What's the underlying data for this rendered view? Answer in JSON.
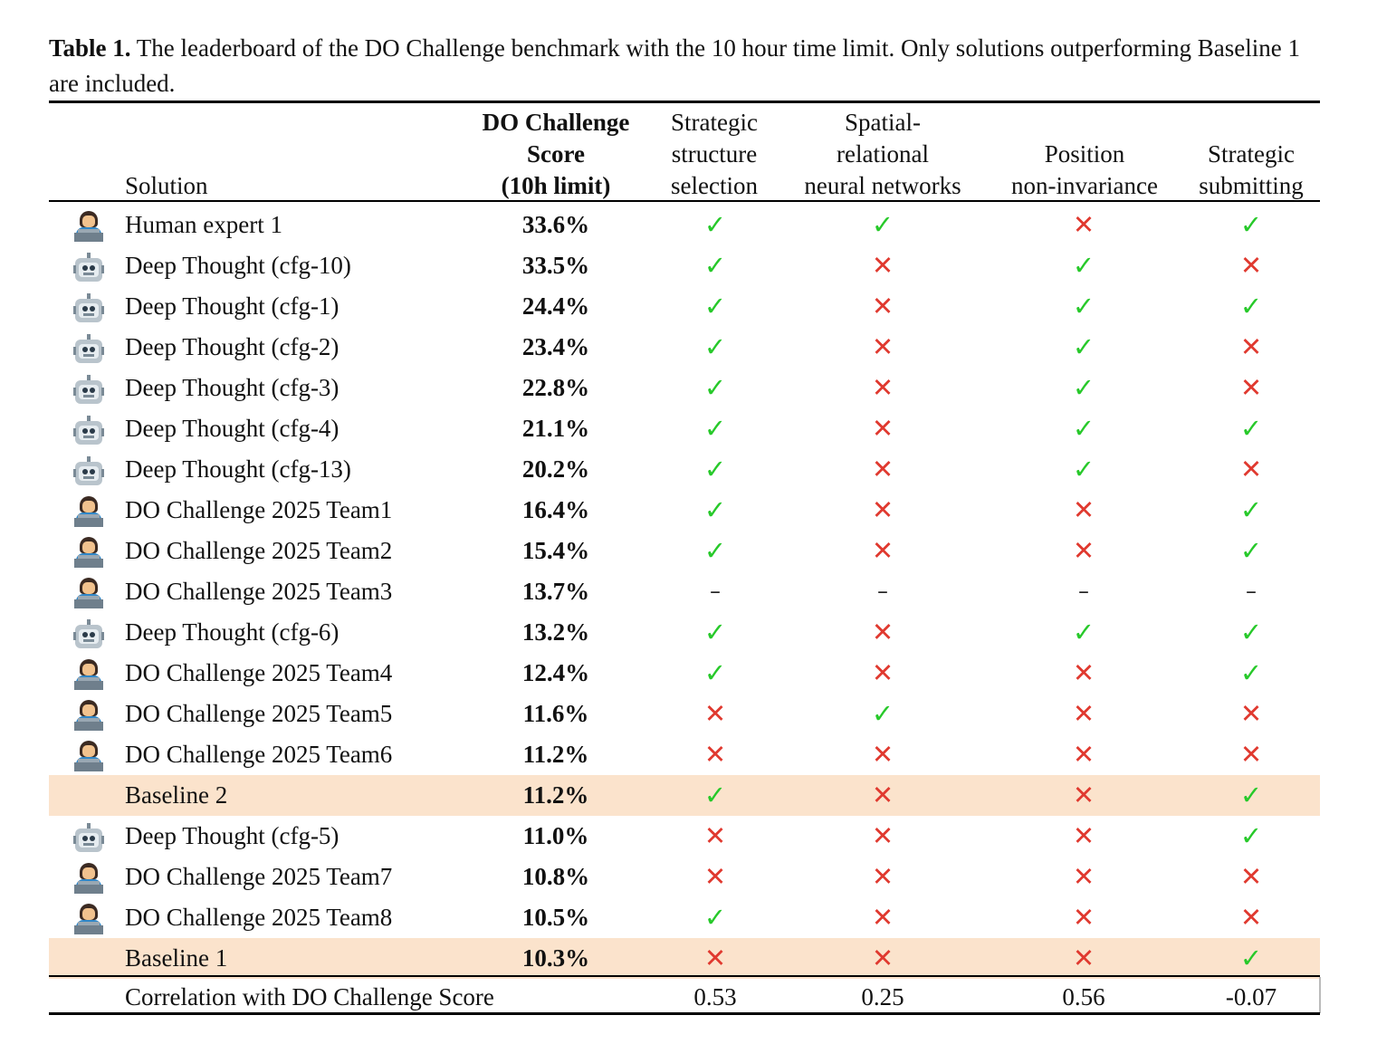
{
  "caption": {
    "label": "Table 1.",
    "text": " The leaderboard of the DO Challenge benchmark with the 10 hour time limit. Only solutions outperforming Baseline 1 are included."
  },
  "headers": {
    "solution": "Solution",
    "score": [
      "DO Challenge",
      "Score",
      "(10h limit)"
    ],
    "strategic_structure": [
      "Strategic",
      "structure",
      "selection"
    ],
    "spatial": [
      "Spatial-",
      "relational",
      "neural networks"
    ],
    "position": [
      "Position",
      "non-invariance"
    ],
    "strategic_submitting": [
      "Strategic",
      "submitting"
    ]
  },
  "rows": [
    {
      "icon": "human-icon",
      "name": "Human expert 1",
      "score": "33.6%",
      "marks": [
        "yes",
        "yes",
        "no",
        "yes"
      ]
    },
    {
      "icon": "robot-icon",
      "name": "Deep Thought (cfg-10)",
      "score": "33.5%",
      "marks": [
        "yes",
        "no",
        "yes",
        "no"
      ]
    },
    {
      "icon": "robot-icon",
      "name": "Deep Thought (cfg-1)",
      "score": "24.4%",
      "marks": [
        "yes",
        "no",
        "yes",
        "yes"
      ]
    },
    {
      "icon": "robot-icon",
      "name": "Deep Thought (cfg-2)",
      "score": "23.4%",
      "marks": [
        "yes",
        "no",
        "yes",
        "no"
      ]
    },
    {
      "icon": "robot-icon",
      "name": "Deep Thought (cfg-3)",
      "score": "22.8%",
      "marks": [
        "yes",
        "no",
        "yes",
        "no"
      ]
    },
    {
      "icon": "robot-icon",
      "name": "Deep Thought (cfg-4)",
      "score": "21.1%",
      "marks": [
        "yes",
        "no",
        "yes",
        "yes"
      ]
    },
    {
      "icon": "robot-icon",
      "name": "Deep Thought (cfg-13)",
      "score": "20.2%",
      "marks": [
        "yes",
        "no",
        "yes",
        "no"
      ]
    },
    {
      "icon": "human-icon",
      "name": "DO Challenge 2025 Team1",
      "score": "16.4%",
      "marks": [
        "yes",
        "no",
        "no",
        "yes"
      ]
    },
    {
      "icon": "human-icon",
      "name": "DO Challenge 2025 Team2",
      "score": "15.4%",
      "marks": [
        "yes",
        "no",
        "no",
        "yes"
      ]
    },
    {
      "icon": "human-icon",
      "name": "DO Challenge 2025 Team3",
      "score": "13.7%",
      "marks": [
        "dash",
        "dash",
        "dash",
        "dash"
      ]
    },
    {
      "icon": "robot-icon",
      "name": "Deep Thought (cfg-6)",
      "score": "13.2%",
      "marks": [
        "yes",
        "no",
        "yes",
        "yes"
      ]
    },
    {
      "icon": "human-icon",
      "name": "DO Challenge 2025 Team4",
      "score": "12.4%",
      "marks": [
        "yes",
        "no",
        "no",
        "yes"
      ]
    },
    {
      "icon": "human-icon",
      "name": "DO Challenge 2025 Team5",
      "score": "11.6%",
      "marks": [
        "no",
        "yes",
        "no",
        "no"
      ]
    },
    {
      "icon": "human-icon",
      "name": "DO Challenge 2025 Team6",
      "score": "11.2%",
      "marks": [
        "no",
        "no",
        "no",
        "no"
      ]
    },
    {
      "icon": "",
      "name": "Baseline 2",
      "score": "11.2%",
      "marks": [
        "yes",
        "no",
        "no",
        "yes"
      ],
      "highlight": true
    },
    {
      "icon": "robot-icon",
      "name": "Deep Thought (cfg-5)",
      "score": "11.0%",
      "marks": [
        "no",
        "no",
        "no",
        "yes"
      ]
    },
    {
      "icon": "human-icon",
      "name": "DO Challenge 2025 Team7",
      "score": "10.8%",
      "marks": [
        "no",
        "no",
        "no",
        "no"
      ]
    },
    {
      "icon": "human-icon",
      "name": "DO Challenge 2025 Team8",
      "score": "10.5%",
      "marks": [
        "yes",
        "no",
        "no",
        "no"
      ]
    },
    {
      "icon": "",
      "name": "Baseline 1",
      "score": "10.3%",
      "marks": [
        "no",
        "no",
        "no",
        "yes"
      ],
      "highlight": true
    }
  ],
  "correlation": {
    "label": "Correlation with DO Challenge Score",
    "values": [
      "0.53",
      "0.25",
      "0.56",
      "-0.07"
    ]
  },
  "symbols": {
    "yes": "✓",
    "no": "✕",
    "dash": "–"
  },
  "colors": {
    "check": "#27c92a",
    "cross": "#e0392f",
    "highlight_row": "#fbe3cc"
  }
}
